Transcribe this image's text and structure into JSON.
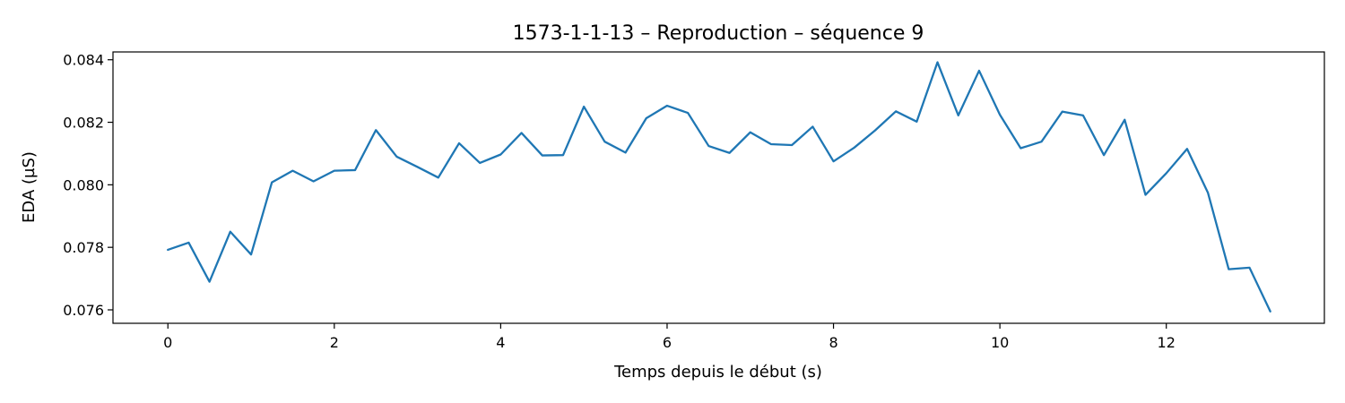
{
  "chart_data": {
    "type": "line",
    "title": "1573-1-1-13 – Reproduction – séquence 9",
    "xlabel": "Temps depuis le début (s)",
    "ylabel": "EDA (µS)",
    "xlim": [
      -0.66,
      13.9
    ],
    "ylim": [
      0.07557,
      0.08425
    ],
    "xticks": [
      0,
      2,
      4,
      6,
      8,
      10,
      12
    ],
    "yticks": [
      0.076,
      0.078,
      0.08,
      0.082,
      0.084
    ],
    "ytick_labels": [
      "0.076",
      "0.078",
      "0.080",
      "0.082",
      "0.084"
    ],
    "grid": false,
    "series": [
      {
        "color": "#1f77b4",
        "x": [
          0,
          0.25,
          0.5,
          0.75,
          1.0,
          1.25,
          1.5,
          1.75,
          2.0,
          2.25,
          2.5,
          2.75,
          3.0,
          3.25,
          3.5,
          3.75,
          4.0,
          4.25,
          4.5,
          4.75,
          5.0,
          5.25,
          5.5,
          5.75,
          6.0,
          6.25,
          6.5,
          6.75,
          7.0,
          7.25,
          7.5,
          7.75,
          8.0,
          8.25,
          8.5,
          8.75,
          9.0,
          9.25,
          9.5,
          9.75,
          10.0,
          10.25,
          10.5,
          10.75,
          11.0,
          11.25,
          11.5,
          11.75,
          12.0,
          12.25,
          12.5,
          12.75,
          13.0,
          13.25
        ],
        "y": [
          0.07792,
          0.07815,
          0.0769,
          0.0785,
          0.07777,
          0.08008,
          0.08045,
          0.08011,
          0.08045,
          0.08047,
          0.08175,
          0.0809,
          0.08057,
          0.08023,
          0.08133,
          0.0807,
          0.08097,
          0.08166,
          0.08094,
          0.08095,
          0.0825,
          0.08138,
          0.08103,
          0.08213,
          0.08253,
          0.0823,
          0.08124,
          0.08102,
          0.08168,
          0.0813,
          0.08127,
          0.08186,
          0.08075,
          0.08119,
          0.08174,
          0.08235,
          0.08202,
          0.08392,
          0.08222,
          0.08365,
          0.08224,
          0.08117,
          0.08138,
          0.08234,
          0.08222,
          0.08095,
          0.08208,
          0.07968,
          0.08037,
          0.08115,
          0.07975,
          0.0773,
          0.07735,
          0.07595
        ]
      }
    ]
  }
}
